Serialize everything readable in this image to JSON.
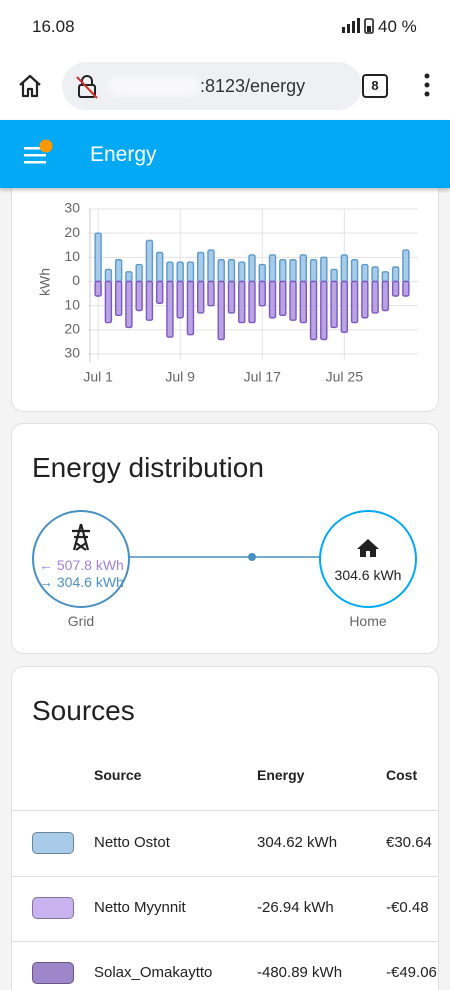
{
  "status_bar": {
    "time": "16.08",
    "battery": "40 %"
  },
  "browser": {
    "url": ":8123/energy",
    "tabs": "8"
  },
  "app_bar": {
    "title": "Energy"
  },
  "chart_data": {
    "type": "bar",
    "y_label": "kWh",
    "categories": [
      "Jul 1",
      null,
      null,
      null,
      null,
      null,
      null,
      null,
      "Jul 9",
      null,
      null,
      null,
      null,
      null,
      null,
      null,
      "Jul 17",
      null,
      null,
      null,
      null,
      null,
      null,
      null,
      "Jul 25",
      null,
      null,
      null,
      null,
      null,
      null
    ],
    "series": [
      {
        "color": "#a7cbe8",
        "values": [
          20,
          5,
          9,
          4,
          7,
          17,
          12,
          8,
          8,
          8,
          12,
          13,
          9,
          9,
          8,
          11,
          7,
          11,
          9,
          9,
          11,
          9,
          10,
          5,
          11,
          9,
          7,
          6,
          4,
          6,
          13
        ]
      },
      {
        "color": "#b9a3e3",
        "values": [
          -6,
          -17,
          -14,
          -19,
          -12,
          -16,
          -9,
          -23,
          -15,
          -22,
          -13,
          -10,
          -24,
          -13,
          -17,
          -17,
          -10,
          -15,
          -14,
          -16,
          -17,
          -24,
          -24,
          -19,
          -21,
          -17,
          -15,
          -13,
          -12,
          -6,
          -6
        ]
      }
    ],
    "ylim": [
      -30,
      30
    ],
    "yticks": [
      {
        "value": -30,
        "label": "30"
      },
      {
        "value": -20,
        "label": "20"
      },
      {
        "value": -10,
        "label": "10"
      },
      0,
      10,
      20,
      30
    ],
    "grid": true
  },
  "distribution": {
    "title": "Energy distribution",
    "grid": {
      "label": "Grid",
      "from": "← 507.8 kWh",
      "to": "→ 304.6 kWh"
    },
    "home": {
      "label": "Home",
      "value": "304.6 kWh"
    }
  },
  "sources": {
    "title": "Sources",
    "headers": [
      "Source",
      "Energy",
      "Cost"
    ],
    "rows": [
      {
        "color": "#a7cbe8",
        "name": "Netto Ostot",
        "energy": "304.62 kWh",
        "cost": "€30.64"
      },
      {
        "color": "#c9b3ef",
        "name": "Netto Myynnit",
        "energy": "-26.94 kWh",
        "cost": "-€0.48"
      },
      {
        "color": "#9d86c9",
        "name": "Solax_Omakaytto",
        "energy": "-480.89 kWh",
        "cost": "-€49.06"
      }
    ]
  }
}
